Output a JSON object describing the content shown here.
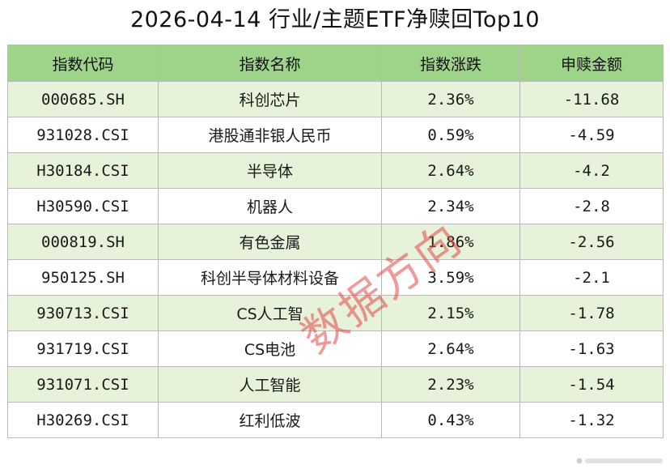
{
  "title": "2026-04-14 行业/主题ETF净赎回Top10",
  "watermark": "数据方向",
  "chart_data": {
    "type": "table",
    "title": "2026-04-14 行业/主题ETF净赎回Top10",
    "columns": [
      "指数代码",
      "指数名称",
      "指数涨跌",
      "申赎金额"
    ],
    "rows": [
      [
        "000685.SH",
        "科创芯片",
        "2.36%",
        "-11.68"
      ],
      [
        "931028.CSI",
        "港股通非银人民币",
        "0.59%",
        "-4.59"
      ],
      [
        "H30184.CSI",
        "半导体",
        "2.64%",
        "-4.2"
      ],
      [
        "H30590.CSI",
        "机器人",
        "2.34%",
        "-2.8"
      ],
      [
        "000819.SH",
        "有色金属",
        "1.86%",
        "-2.56"
      ],
      [
        "950125.SH",
        "科创半导体材料设备",
        "3.59%",
        "-2.1"
      ],
      [
        "930713.CSI",
        "CS人工智",
        "2.15%",
        "-1.78"
      ],
      [
        "931719.CSI",
        "CS电池",
        "2.64%",
        "-1.63"
      ],
      [
        "931071.CSI",
        "人工智能",
        "2.23%",
        "-1.54"
      ],
      [
        "H30269.CSI",
        "红利低波",
        "0.43%",
        "-1.32"
      ]
    ]
  },
  "colors": {
    "header_bg": "#9ed48a",
    "stripe_bg": "#e6f2d9",
    "watermark": "#e44646"
  }
}
